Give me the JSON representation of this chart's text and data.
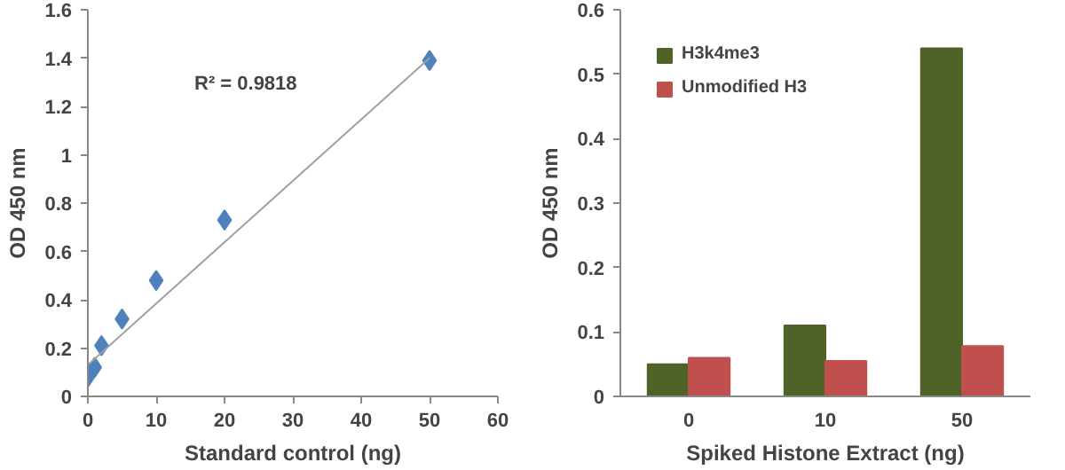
{
  "chart_data": [
    {
      "type": "scatter",
      "xlabel": "Standard control (ng)",
      "ylabel": "OD 450 nm",
      "annotations": [
        "R² = 0.9818"
      ],
      "grid": false,
      "legend": false,
      "xlim": [
        0,
        60
      ],
      "xticks": [
        0,
        10,
        20,
        30,
        40,
        50,
        60
      ],
      "ylim": [
        0,
        1.6
      ],
      "yticks": [
        0,
        0.2,
        0.4,
        0.6,
        0.8,
        1,
        1.2,
        1.4,
        1.6
      ],
      "series": [
        {
          "type": "scatter",
          "marker": "diamond",
          "color": "#4f81bd",
          "x": [
            0,
            1,
            2,
            5,
            10,
            20,
            50
          ],
          "values": [
            0.08,
            0.12,
            0.21,
            0.32,
            0.48,
            0.73,
            1.39
          ]
        },
        {
          "type": "line",
          "marker": "none",
          "color": "#a0a0a0",
          "x": [
            0,
            50
          ],
          "values": [
            0.13,
            1.4
          ]
        }
      ]
    },
    {
      "type": "bar",
      "xlabel": "Spiked Histone Extract (ng)",
      "ylabel": "OD 450 nm",
      "categories": [
        "0",
        "10",
        "50"
      ],
      "grid": false,
      "legend": "top left",
      "ylim": [
        0,
        0.6
      ],
      "yticks": [
        0,
        0.1,
        0.2,
        0.3,
        0.4,
        0.5,
        0.6
      ],
      "series": [
        {
          "name": "H3k4me3",
          "color": "#4f6228",
          "values": [
            0.05,
            0.11,
            0.54
          ]
        },
        {
          "name": "Unmodified H3",
          "color": "#c0504d",
          "values": [
            0.06,
            0.055,
            0.078
          ]
        }
      ]
    }
  ]
}
